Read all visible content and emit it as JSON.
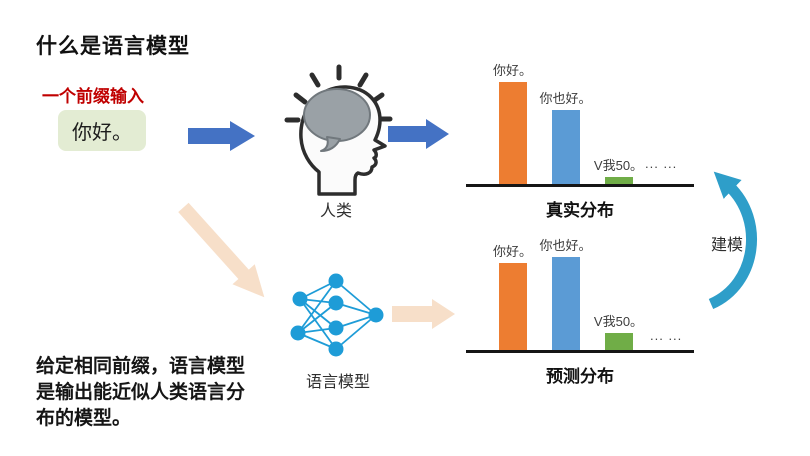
{
  "slide": {
    "title": "什么是语言模型",
    "prefix_label": "一个前缀输入",
    "prefix_value": "你好。",
    "human_label": "人类",
    "model_label": "语言模型",
    "modeling_label": "建模",
    "note": "给定相同前缀，语言模型是输出能近似人类语言分布的模型。"
  },
  "chart_data": [
    {
      "type": "bar",
      "title": "真实分布",
      "categories": [
        "你好。",
        "你也好。",
        "V我50。"
      ],
      "values": [
        0.96,
        0.7,
        0.07
      ],
      "overflow_label": "... ...",
      "bar_colors": [
        "#ED7D31",
        "#5B9BD5",
        "#70AD47"
      ],
      "xlabel": "",
      "ylabel": "",
      "ylim": [
        0,
        1
      ],
      "grid": false,
      "legend": false
    },
    {
      "type": "bar",
      "title": "预测分布",
      "categories": [
        "你好。",
        "你也好。",
        "V我50。"
      ],
      "values": [
        0.82,
        0.88,
        0.16
      ],
      "overflow_label": "... ...",
      "bar_colors": [
        "#ED7D31",
        "#5B9BD5",
        "#70AD47"
      ],
      "xlabel": "",
      "ylabel": "",
      "ylim": [
        0,
        1
      ],
      "grid": false,
      "legend": false
    }
  ],
  "colors": {
    "title_text": "#111111",
    "prefix_red": "#C00000",
    "prefix_box_bg": "#E3ECD3",
    "arrow_blue": "#4472C4",
    "arrow_peach": "#F7DFC9",
    "bar_orange": "#ED7D31",
    "bar_blue": "#5B9BD5",
    "bar_green": "#70AD47",
    "network_blue": "#1E9CD7",
    "modeling_arrow_blue": "#2E9EC9",
    "axis_black": "#161616",
    "brain_gray": "#9aa1a6"
  }
}
